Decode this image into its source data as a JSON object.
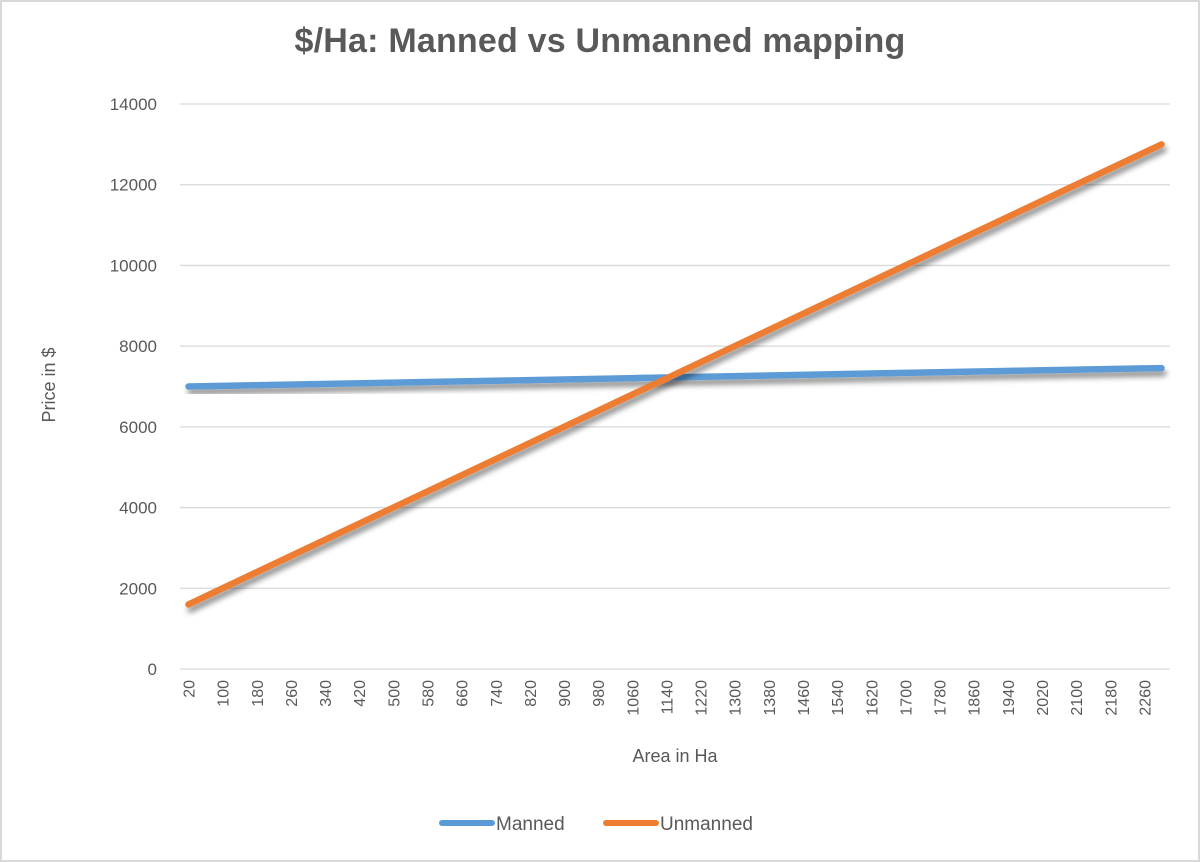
{
  "chart_data": {
    "type": "line",
    "title": "$/Ha: Manned vs Unmanned mapping",
    "xlabel": "Area in Ha",
    "ylabel": "Price in $",
    "ylim": [
      0,
      14000
    ],
    "yticks": [
      0,
      2000,
      4000,
      6000,
      8000,
      10000,
      12000,
      14000
    ],
    "x_start": 20,
    "x_end": 2300,
    "x_step": 40,
    "x_tick_labels": [
      "20",
      "100",
      "180",
      "260",
      "340",
      "420",
      "500",
      "580",
      "660",
      "740",
      "820",
      "900",
      "980",
      "1060",
      "1140",
      "1220",
      "1300",
      "1380",
      "1460",
      "1540",
      "1620",
      "1700",
      "1780",
      "1860",
      "1940",
      "2020",
      "2100",
      "2180",
      "2260"
    ],
    "grid": true,
    "legend_position": "bottom",
    "series": [
      {
        "name": "Manned",
        "color": "#5b9bd5",
        "formula": "7000 + 0.2*(x-20)",
        "start_value": 7000,
        "end_value": 7456,
        "points": [
          [
            20,
            7000
          ],
          [
            580,
            7112
          ],
          [
            1140,
            7224
          ],
          [
            1700,
            7336
          ],
          [
            2300,
            7456
          ]
        ]
      },
      {
        "name": "Unmanned",
        "color": "#ed7d31",
        "formula": "1600 + 5*(x-20)",
        "start_value": 1600,
        "end_value": 13000,
        "points": [
          [
            20,
            1600
          ],
          [
            580,
            4400
          ],
          [
            1140,
            7200
          ],
          [
            1700,
            10000
          ],
          [
            2300,
            13000
          ]
        ]
      }
    ]
  },
  "legend": {
    "items": [
      {
        "label": "Manned",
        "color": "#5b9bd5"
      },
      {
        "label": "Unmanned",
        "color": "#ed7d31"
      }
    ]
  }
}
